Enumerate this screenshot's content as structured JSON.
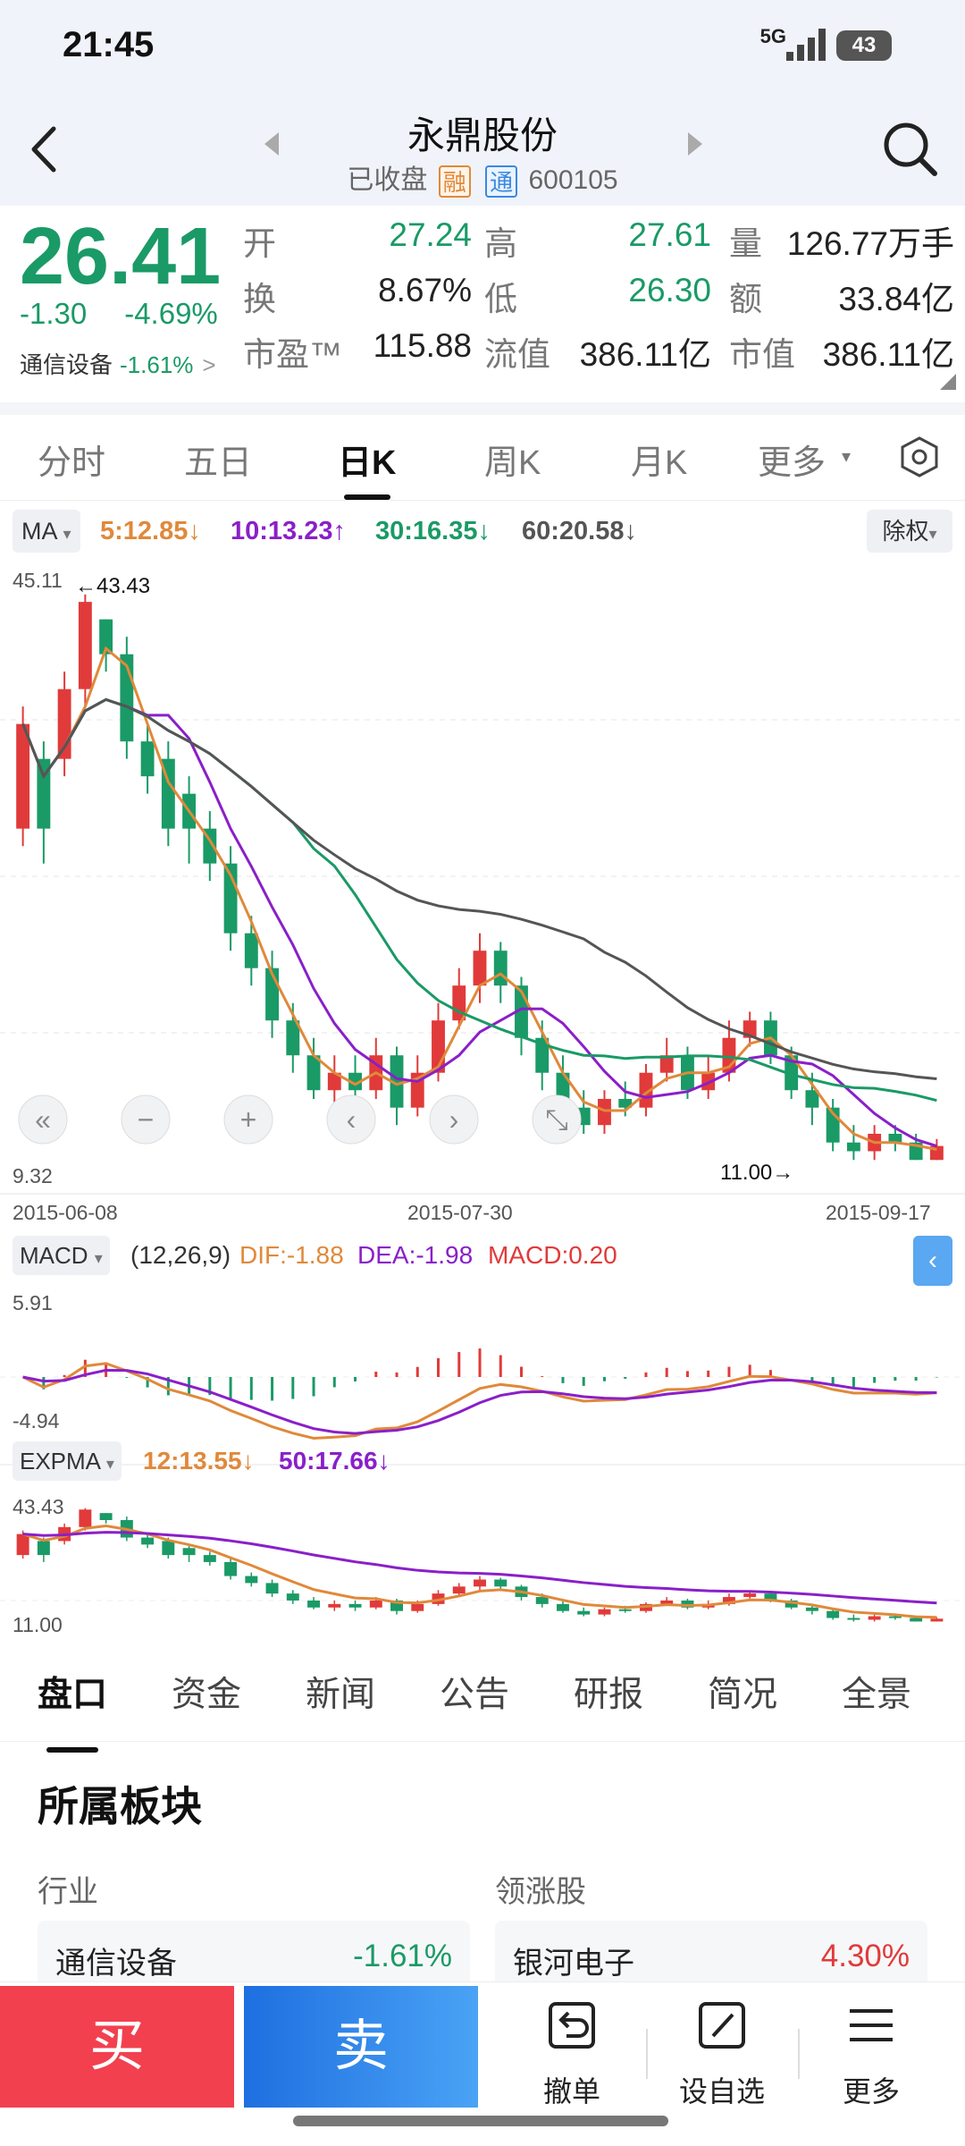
{
  "status": {
    "time": "21:45",
    "network": "5G",
    "battery": "43"
  },
  "header": {
    "stock_name": "永鼎股份",
    "status_text": "已收盘",
    "tag_rong": "融",
    "tag_tong": "通",
    "code": "600105"
  },
  "quote": {
    "price": "26.41",
    "change": "-1.30",
    "change_pct": "-4.69%",
    "sector_name": "通信设备",
    "sector_pct": "-1.61%",
    "rows": [
      [
        {
          "label": "开",
          "value": "27.24",
          "color": "green"
        },
        {
          "label": "高",
          "value": "27.61",
          "color": "green"
        },
        {
          "label": "量",
          "value": "126.77万手",
          "color": "plain"
        }
      ],
      [
        {
          "label": "换",
          "value": "8.67%",
          "color": "plain"
        },
        {
          "label": "低",
          "value": "26.30",
          "color": "green"
        },
        {
          "label": "额",
          "value": "33.84亿",
          "color": "plain"
        }
      ],
      [
        {
          "label": "市盈™",
          "value": "115.88",
          "color": "plain"
        },
        {
          "label": "流值",
          "value": "386.11亿",
          "color": "plain"
        },
        {
          "label": "市值",
          "value": "386.11亿",
          "color": "plain"
        }
      ]
    ]
  },
  "chart_tabs": [
    "分时",
    "五日",
    "日K",
    "周K",
    "月K",
    "更多"
  ],
  "chart_tabs_active": "日K",
  "ma": {
    "button": "MA",
    "items": [
      {
        "text": "5:12.85↓",
        "color": "#e0893a"
      },
      {
        "text": "10:13.23↑",
        "color": "#8a1fc9"
      },
      {
        "text": "30:16.35↓",
        "color": "#1a9a66"
      },
      {
        "text": "60:20.58↓",
        "color": "#555555"
      }
    ],
    "fuquan": "除权"
  },
  "kline": {
    "y_max_label": "45.11",
    "y_min_label": "9.32",
    "high_marker": "←43.43",
    "low_marker": "11.00→",
    "x_labels": [
      "2015-06-08",
      "2015-07-30",
      "2015-09-17"
    ]
  },
  "macd": {
    "button": "MACD",
    "params": "(12,26,9)",
    "dif": "DIF:-1.88",
    "dea": "DEA:-1.98",
    "macd": "MACD:0.20",
    "y_max": "5.91",
    "y_min": "-4.94"
  },
  "expma": {
    "button": "EXPMA",
    "e12": "12:13.55↓",
    "e50": "50:17.66↓",
    "y_max": "43.43",
    "y_min": "11.00"
  },
  "panel_tabs": [
    "盘口",
    "资金",
    "新闻",
    "公告",
    "研报",
    "简况",
    "全景"
  ],
  "panel_tabs_active": "盘口",
  "section": {
    "title": "所属板块",
    "industry_label": "行业",
    "leader_label": "领涨股",
    "industry_name": "通信设备",
    "industry_pct": "-1.61%",
    "leader_name": "银河电子",
    "leader_pct": "4.30%"
  },
  "bottom": {
    "buy": "买",
    "sell": "卖",
    "cancel": "撤单",
    "watchlist": "设自选",
    "more": "更多"
  },
  "chart_data": {
    "type": "candlestick",
    "x_start": "2015-06-08",
    "x_mid": "2015-07-30",
    "x_end": "2015-09-17",
    "ylim": [
      9.32,
      45.11
    ],
    "candles": [
      [
        30,
        36,
        37,
        29
      ],
      [
        34,
        30,
        35,
        28
      ],
      [
        34,
        38,
        39,
        33
      ],
      [
        38,
        43,
        43.43,
        37
      ],
      [
        42,
        40,
        42,
        39
      ],
      [
        40,
        35,
        41,
        34
      ],
      [
        35,
        33,
        36,
        32
      ],
      [
        34,
        30,
        35,
        29
      ],
      [
        32,
        30,
        33,
        28
      ],
      [
        30,
        28,
        31,
        27
      ],
      [
        28,
        24,
        29,
        23
      ],
      [
        24,
        22,
        25,
        21
      ],
      [
        22,
        19,
        23,
        18
      ],
      [
        19,
        17,
        20,
        16
      ],
      [
        17,
        15,
        18,
        14.5
      ],
      [
        15,
        16,
        17,
        14
      ],
      [
        16,
        15,
        17,
        14
      ],
      [
        15,
        17,
        18,
        14.5
      ],
      [
        17,
        14,
        17.5,
        13
      ],
      [
        14,
        16,
        17,
        13.5
      ],
      [
        16,
        19,
        20,
        15.5
      ],
      [
        19,
        21,
        22,
        18.5
      ],
      [
        21,
        23,
        24,
        20
      ],
      [
        23,
        21,
        23.5,
        20
      ],
      [
        21,
        18,
        21.5,
        17
      ],
      [
        18,
        16,
        19,
        15
      ],
      [
        16,
        14,
        17,
        13.5
      ],
      [
        14,
        13,
        15,
        12.5
      ],
      [
        13,
        14.5,
        15,
        12.5
      ],
      [
        14.5,
        14,
        15.5,
        13.5
      ],
      [
        14,
        16,
        16.5,
        13.5
      ],
      [
        16,
        17,
        18,
        15.5
      ],
      [
        17,
        15,
        17.5,
        14.5
      ],
      [
        15,
        16,
        17,
        14.5
      ],
      [
        16,
        18,
        19,
        15.5
      ],
      [
        18,
        19,
        19.5,
        17.5
      ],
      [
        19,
        17,
        19.5,
        16.5
      ],
      [
        17,
        15,
        17.5,
        14.5
      ],
      [
        15,
        14,
        16,
        13
      ],
      [
        14,
        12,
        14.5,
        11.5
      ],
      [
        12,
        11.5,
        13,
        11
      ],
      [
        11.5,
        12.5,
        13,
        11
      ],
      [
        12.5,
        12,
        13,
        11.5
      ],
      [
        12,
        11,
        12.5,
        11
      ],
      [
        11,
        11.8,
        12.2,
        11
      ]
    ]
  }
}
